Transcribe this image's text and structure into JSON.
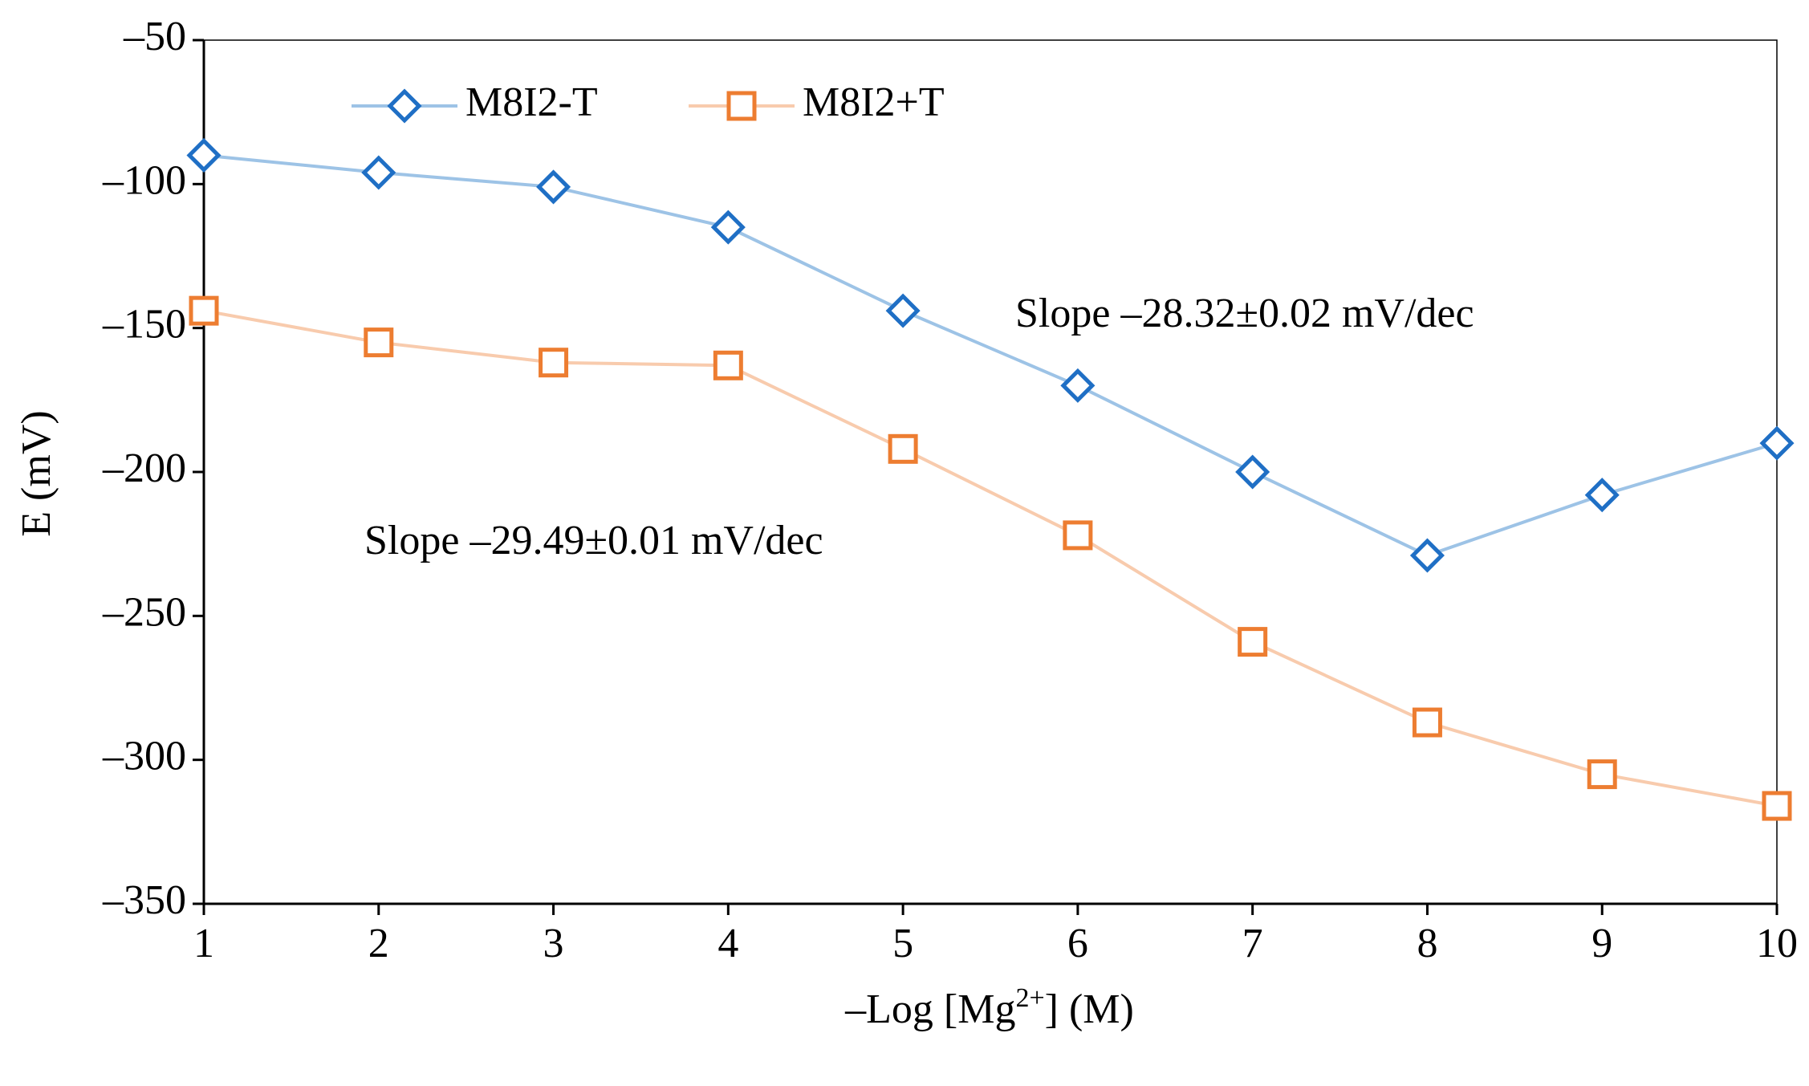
{
  "chart_data": {
    "type": "line",
    "x": [
      1,
      2,
      3,
      4,
      5,
      6,
      7,
      8,
      9,
      10
    ],
    "series": [
      {
        "name": "M8I2-T",
        "color": "#1f6fc5",
        "line_color": "#9dc3e6",
        "marker": "diamond",
        "values": [
          -90,
          -96,
          -101,
          -115,
          -144,
          -170,
          -200,
          -229,
          -208,
          -190
        ]
      },
      {
        "name": "M8I2+T",
        "color": "#ed7d31",
        "line_color": "#f8cbad",
        "marker": "square",
        "values": [
          -144,
          -155,
          -162,
          -163,
          -192,
          -222,
          -259,
          -287,
          -305,
          -316
        ]
      }
    ],
    "xlim": [
      1,
      10
    ],
    "xticks": [
      1,
      2,
      3,
      4,
      5,
      6,
      7,
      8,
      9,
      10
    ],
    "ylim": [
      -350,
      -50
    ],
    "yticks": [
      {
        "value": -350,
        "label": "–350"
      },
      {
        "value": -300,
        "label": "–300"
      },
      {
        "value": -250,
        "label": "–250"
      },
      {
        "value": -200,
        "label": "–200"
      },
      {
        "value": -150,
        "label": "–150"
      },
      {
        "value": -100,
        "label": "–100"
      },
      {
        "value": -50,
        "label": "–50"
      }
    ],
    "xlabel": [
      "–Log [Mg",
      "2+",
      "] (M)"
    ],
    "ylabel": "E (mV)",
    "annotations": [
      "Slope –28.32±0.02 mV/dec",
      "Slope –29.49±0.01 mV/dec"
    ],
    "grid": false,
    "legend": "top-left"
  }
}
